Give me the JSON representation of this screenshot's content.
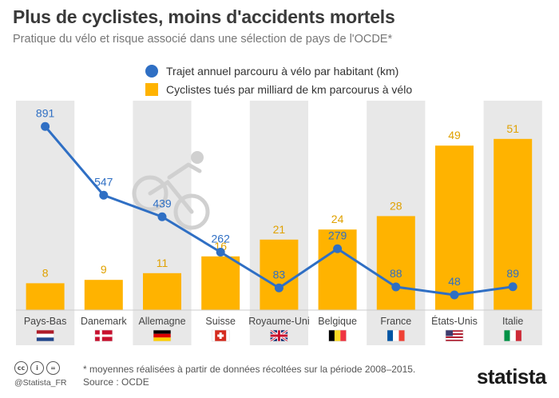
{
  "title": "Plus de cyclistes, moins d'accidents mortels",
  "subtitle": "Pratique du vélo et risque associé dans une sélection de pays de l'OCDE*",
  "legend": {
    "line_label": "Trajet annuel parcouru à vélo par habitant (km)",
    "bar_label": "Cyclistes tués par milliard de km parcourus à vélo"
  },
  "colors": {
    "bar": "#ffb300",
    "line": "#2f6fc4",
    "stripe": "#e8e8e8",
    "bar_label": "#e0a100",
    "line_label": "#2f6fc4"
  },
  "chart_data": {
    "type": "bar",
    "categories": [
      "Pays-Bas",
      "Danemark",
      "Allemagne",
      "Suisse",
      "Royaume-Uni",
      "Belgique",
      "France",
      "États-Unis",
      "Italie"
    ],
    "series": [
      {
        "name": "Cyclistes tués par milliard de km parcourus à vélo",
        "type": "bar",
        "values": [
          8,
          9,
          11,
          16,
          21,
          24,
          28,
          49,
          51
        ]
      },
      {
        "name": "Trajet annuel parcouru à vélo par habitant (km)",
        "type": "line",
        "values": [
          891,
          547,
          439,
          262,
          83,
          279,
          88,
          48,
          89
        ]
      }
    ],
    "flags": [
      "netherlands-flag-icon",
      "denmark-flag-icon",
      "germany-flag-icon",
      "switzerland-flag-icon",
      "uk-flag-icon",
      "belgium-flag-icon",
      "france-flag-icon",
      "usa-flag-icon",
      "italy-flag-icon"
    ],
    "grid": false,
    "legend_position": "top"
  },
  "footer": {
    "note": "* moyennes réalisées à partir de données récoltées sur la période 2008–2015.",
    "source": "Source : OCDE",
    "handle": "@Statista_FR",
    "brand": "statista"
  }
}
